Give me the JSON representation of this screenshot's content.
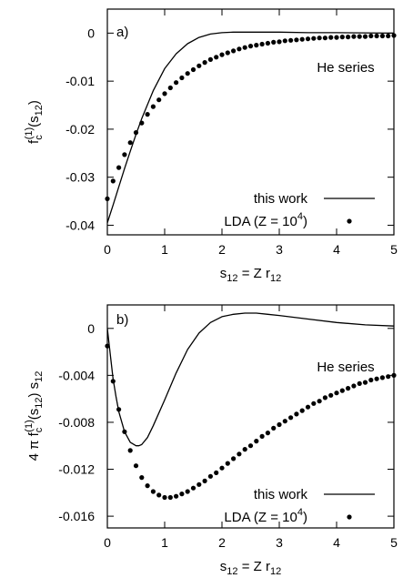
{
  "chart_data": [
    {
      "type": "line",
      "panel_label": "a)",
      "annotation": "He series",
      "xlim": [
        0,
        5
      ],
      "ylim": [
        -0.042,
        0.005
      ],
      "xticks": [
        0,
        1,
        2,
        3,
        4,
        5
      ],
      "yticks": [
        0,
        -0.01,
        -0.02,
        -0.03,
        -0.04
      ],
      "ytick_labels": [
        "0",
        "-0.01",
        "-0.02",
        "-0.03",
        "-0.04"
      ],
      "xlabel": {
        "base": "s",
        "sub1": "12",
        "mid": " = Z r",
        "sub2": "12"
      },
      "ylabel": {
        "base": "f",
        "sub": "c",
        "sup": "(1)",
        "rest": "(s",
        "sub2": "12",
        "end": ")"
      },
      "legend": {
        "placement": "bottom-right",
        "entries": [
          {
            "label": "this work",
            "style": "line"
          },
          {
            "label_pre": "LDA (Z = 10",
            "label_sup": "4",
            "label_post": ")",
            "style": "dots"
          }
        ]
      },
      "series": [
        {
          "name": "this work",
          "style": "line",
          "x": [
            0,
            0.1,
            0.2,
            0.3,
            0.4,
            0.5,
            0.6,
            0.8,
            1.0,
            1.2,
            1.4,
            1.6,
            1.8,
            2.0,
            2.2,
            2.5,
            3.0,
            3.5,
            4.0,
            5.0
          ],
          "y": [
            -0.0395,
            -0.0358,
            -0.032,
            -0.0282,
            -0.0246,
            -0.0211,
            -0.0178,
            -0.012,
            -0.0074,
            -0.0043,
            -0.0022,
            -0.0009,
            -0.0002,
            0.0001,
            0.0002,
            0.0002,
            0.0002,
            0.0001,
            0.0001,
            0.0
          ]
        },
        {
          "name": "LDA (Z = 10^4)",
          "style": "dots",
          "x": [
            0.0,
            0.1,
            0.2,
            0.3,
            0.4,
            0.5,
            0.6,
            0.7,
            0.8,
            0.9,
            1.0,
            1.1,
            1.2,
            1.3,
            1.4,
            1.5,
            1.6,
            1.7,
            1.8,
            1.9,
            2.0,
            2.1,
            2.2,
            2.3,
            2.4,
            2.5,
            2.6,
            2.7,
            2.8,
            2.9,
            3.0,
            3.1,
            3.2,
            3.3,
            3.4,
            3.5,
            3.6,
            3.7,
            3.8,
            3.9,
            4.0,
            4.1,
            4.2,
            4.3,
            4.4,
            4.5,
            4.6,
            4.7,
            4.8,
            4.9,
            5.0
          ],
          "y": [
            -0.0345,
            -0.0308,
            -0.028,
            -0.0253,
            -0.0228,
            -0.0207,
            -0.0187,
            -0.0169,
            -0.0153,
            -0.0139,
            -0.0126,
            -0.0114,
            -0.0103,
            -0.0093,
            -0.0084,
            -0.0076,
            -0.0068,
            -0.0061,
            -0.0055,
            -0.005,
            -0.0045,
            -0.0041,
            -0.0037,
            -0.0033,
            -0.003,
            -0.0027,
            -0.0025,
            -0.0023,
            -0.0021,
            -0.0019,
            -0.0018,
            -0.0016,
            -0.0015,
            -0.0014,
            -0.0013,
            -0.0012,
            -0.0011,
            -0.001,
            -0.001,
            -0.0009,
            -0.0009,
            -0.0008,
            -0.0008,
            -0.0007,
            -0.0007,
            -0.0007,
            -0.0006,
            -0.0006,
            -0.0006,
            -0.0006,
            -0.0005
          ]
        }
      ]
    },
    {
      "type": "line",
      "panel_label": "b)",
      "annotation": "He series",
      "xlim": [
        0,
        5
      ],
      "ylim": [
        -0.017,
        0.002
      ],
      "xticks": [
        0,
        1,
        2,
        3,
        4,
        5
      ],
      "yticks": [
        0,
        -0.004,
        -0.008,
        -0.012,
        -0.016
      ],
      "ytick_labels": [
        "0",
        "-0.004",
        "-0.008",
        "-0.012",
        "-0.016"
      ],
      "xlabel": {
        "base": "s",
        "sub1": "12",
        "mid": " = Z r",
        "sub2": "12"
      },
      "ylabel": {
        "pre": "4 π f",
        "sub": "c",
        "sup": "(1)",
        "rest": "(s",
        "sub2": "12",
        "mid": ") s",
        "sub3": "12"
      },
      "legend": {
        "placement": "bottom-right",
        "entries": [
          {
            "label": "this work",
            "style": "line"
          },
          {
            "label_pre": "LDA (Z = 10",
            "label_sup": "4",
            "label_post": ")",
            "style": "dots"
          }
        ]
      },
      "series": [
        {
          "name": "this work",
          "style": "line",
          "x": [
            0,
            0.05,
            0.1,
            0.15,
            0.2,
            0.3,
            0.4,
            0.5,
            0.55,
            0.6,
            0.7,
            0.8,
            1.0,
            1.2,
            1.4,
            1.6,
            1.8,
            2.0,
            2.2,
            2.4,
            2.6,
            2.8,
            3.0,
            3.5,
            4.0,
            4.5,
            5.0
          ],
          "y": [
            0.0,
            -0.0022,
            -0.0043,
            -0.0058,
            -0.0071,
            -0.0088,
            -0.0097,
            -0.01,
            -0.01,
            -0.0099,
            -0.0093,
            -0.0083,
            -0.0061,
            -0.0038,
            -0.0018,
            -0.0004,
            0.0005,
            0.001,
            0.0012,
            0.0013,
            0.0013,
            0.0012,
            0.0011,
            0.0008,
            0.0005,
            0.0003,
            0.0002
          ]
        },
        {
          "name": "LDA (Z = 10^4)",
          "style": "dots",
          "x": [
            0.0,
            0.1,
            0.2,
            0.3,
            0.4,
            0.5,
            0.6,
            0.7,
            0.8,
            0.9,
            1.0,
            1.1,
            1.2,
            1.3,
            1.4,
            1.5,
            1.6,
            1.7,
            1.8,
            1.9,
            2.0,
            2.1,
            2.2,
            2.3,
            2.4,
            2.5,
            2.6,
            2.7,
            2.8,
            2.9,
            3.0,
            3.1,
            3.2,
            3.3,
            3.4,
            3.5,
            3.6,
            3.7,
            3.8,
            3.9,
            4.0,
            4.1,
            4.2,
            4.3,
            4.4,
            4.5,
            4.6,
            4.7,
            4.8,
            4.9,
            5.0
          ],
          "y": [
            -0.0015,
            -0.0045,
            -0.0069,
            -0.0088,
            -0.0104,
            -0.0117,
            -0.0127,
            -0.0134,
            -0.0139,
            -0.0142,
            -0.0144,
            -0.0144,
            -0.0143,
            -0.0141,
            -0.0139,
            -0.0136,
            -0.0133,
            -0.013,
            -0.0126,
            -0.0123,
            -0.0119,
            -0.0115,
            -0.0111,
            -0.0107,
            -0.0103,
            -0.01,
            -0.0096,
            -0.0092,
            -0.0089,
            -0.0085,
            -0.0082,
            -0.0079,
            -0.0076,
            -0.0073,
            -0.007,
            -0.0067,
            -0.0064,
            -0.0062,
            -0.0059,
            -0.0057,
            -0.0055,
            -0.0053,
            -0.0051,
            -0.0049,
            -0.0047,
            -0.0046,
            -0.0044,
            -0.0043,
            -0.0042,
            -0.0041,
            -0.004
          ]
        }
      ]
    }
  ]
}
